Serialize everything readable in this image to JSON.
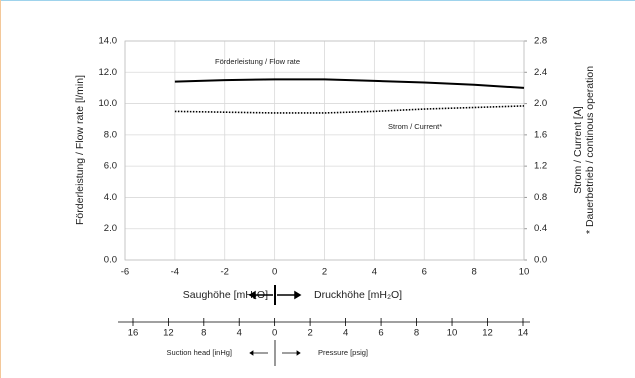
{
  "chart_data": {
    "type": "line",
    "x_label": "Saughöhe [mH₂O]",
    "x_label_right": "Druckhöhe [mH₂O]",
    "y_label": "Förderleistung / Flow rate [l/min]",
    "y2_label": "Strom / Current [A]",
    "y2_note": "* Dauerbetrieb / continous operation",
    "xlim": [
      -6,
      10
    ],
    "xticks": [
      -6,
      -4,
      -2,
      0,
      2,
      4,
      6,
      8,
      10
    ],
    "ylim": [
      0,
      14
    ],
    "yticks": [
      {
        "value": 0,
        "label": "0.0"
      },
      {
        "value": 2,
        "label": "2.0"
      },
      {
        "value": 4,
        "label": "4.0"
      },
      {
        "value": 6,
        "label": "6.0"
      },
      {
        "value": 8,
        "label": "8.0"
      },
      {
        "value": 10,
        "label": "10.0"
      },
      {
        "value": 12,
        "label": "12.0"
      },
      {
        "value": 14,
        "label": "14.0"
      }
    ],
    "y2lim": [
      0,
      2.8
    ],
    "y2ticks": [
      {
        "value": 0,
        "label": "0.0"
      },
      0.4,
      0.8,
      1.2,
      1.6,
      {
        "value": 2,
        "label": "2.0"
      },
      2.4,
      2.8
    ],
    "grid": true,
    "x": [
      -4,
      -2,
      0,
      2,
      4,
      6,
      8,
      10
    ],
    "series": [
      {
        "name": "Förderleistung / Flow rate",
        "color": "#000000",
        "dash": "solid",
        "values": [
          11.4,
          11.5,
          11.55,
          11.55,
          11.45,
          11.35,
          11.2,
          11.0
        ]
      },
      {
        "name": "Strom / Current*",
        "color": "#000000",
        "dash": "dotted",
        "axis": "y2",
        "values": [
          1.9,
          1.89,
          1.88,
          1.88,
          1.9,
          1.93,
          1.95,
          1.97
        ]
      }
    ],
    "pressure_scale": {
      "inhg_label": "Suction head [inHg]",
      "psig_label": "Pressure [psig]",
      "inhg_lim": [
        0,
        16
      ],
      "inhg_ticks": [
        16,
        12,
        8,
        4,
        0
      ],
      "psig_lim": [
        0,
        14
      ],
      "psig_ticks": [
        2,
        4,
        6,
        8,
        10,
        12,
        14
      ]
    }
  }
}
